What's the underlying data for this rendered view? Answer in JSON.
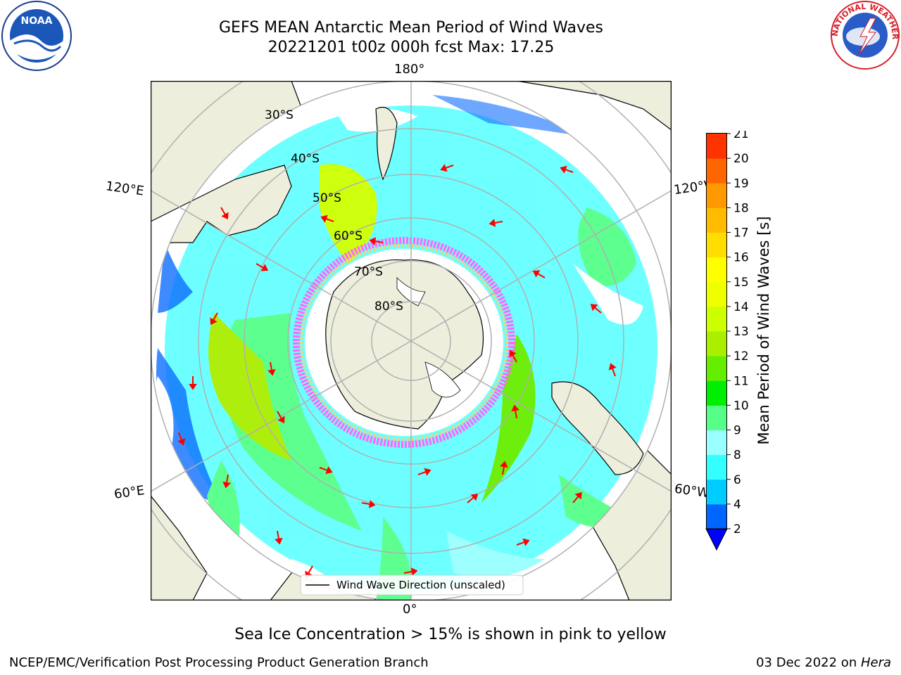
{
  "title": {
    "line1": "GEFS MEAN Antarctic Mean Period of Wind Waves",
    "line2": "20221201 t00z 000h fcst   Max: 17.25"
  },
  "map": {
    "projection": "south-polar-stereographic",
    "longitude_labels": {
      "top": "180°",
      "bottom": "0°",
      "upper_left": "120°E",
      "upper_right": "120°W",
      "lower_left": "60°E",
      "lower_right": "60°W"
    },
    "latitude_labels": [
      "30°S",
      "40°S",
      "50°S",
      "60°S",
      "70°S",
      "80°S"
    ],
    "legend": "Wind Wave Direction (unscaled)",
    "colors": {
      "land": "#eeeedd",
      "ocean_nodata": "#ffffff",
      "graticule": "#b0b0b0",
      "arrow": "#ff0000",
      "sea_ice_pink": "#ff66ff",
      "sea_ice_yellow": "#ffcc66"
    }
  },
  "colorbar": {
    "label": "Mean Period of Wind Waves [s]",
    "ticks": [
      "2",
      "4",
      "6",
      "8",
      "9",
      "10",
      "11",
      "12",
      "13",
      "14",
      "15",
      "16",
      "17",
      "18",
      "19",
      "20",
      "21"
    ],
    "colors": [
      "#0066ff",
      "#00ccff",
      "#33ffff",
      "#99ffff",
      "#55ff88",
      "#00ee00",
      "#66ee00",
      "#aaee00",
      "#ccff00",
      "#eeff00",
      "#ffff00",
      "#ffdd00",
      "#ffbb00",
      "#ff9900",
      "#ff6600",
      "#ff3300"
    ],
    "extend_min_color": "#0000ff"
  },
  "subtitle": "Sea Ice Concentration > 15% is shown in pink to yellow",
  "footer": {
    "left": "NCEP/EMC/Verification Post Processing Product Generation Branch",
    "right_date": "03 Dec 2022 on ",
    "right_host": "Hera"
  },
  "logos": {
    "noaa_text": "NOAA",
    "nws_text": "NATIONAL WEATHER SERVICE"
  }
}
